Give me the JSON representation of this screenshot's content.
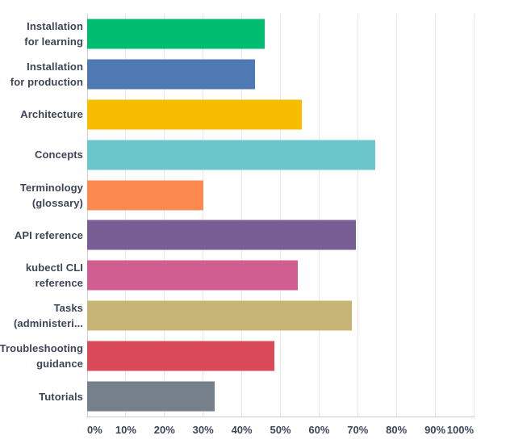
{
  "chart_data": {
    "type": "bar",
    "orientation": "horizontal",
    "title": "",
    "xlabel": "",
    "ylabel": "",
    "categories": [
      "Installation for learning",
      "Installation for production",
      "Architecture",
      "Concepts",
      "Terminology (glossary)",
      "API reference",
      "kubectl CLI reference",
      "Tasks (administeri...",
      "Troubleshooting guidance",
      "Tutorials"
    ],
    "category_display_lines": [
      [
        "Installation",
        "for learning"
      ],
      [
        "Installation",
        "for production"
      ],
      [
        "Architecture"
      ],
      [
        "Concepts"
      ],
      [
        "Terminology",
        "(glossary)"
      ],
      [
        "API reference"
      ],
      [
        "kubectl CLI",
        "reference"
      ],
      [
        "Tasks",
        "(administeri..."
      ],
      [
        "Troubleshooting",
        "guidance"
      ],
      [
        "Tutorials"
      ]
    ],
    "values": [
      46,
      43.5,
      55.5,
      74.5,
      30,
      69.5,
      54.5,
      68.5,
      48.5,
      33
    ],
    "unit": "%",
    "bar_colors": [
      "#00bc70",
      "#4e79b3",
      "#f8bd00",
      "#6bc6cb",
      "#fc8a50",
      "#795e95",
      "#d05e90",
      "#c6b575",
      "#d94b58",
      "#75808a"
    ],
    "xlim": [
      0,
      100
    ],
    "x_tick_values": [
      0,
      10,
      20,
      30,
      40,
      50,
      60,
      70,
      80,
      90,
      100
    ],
    "x_tick_labels": [
      "0%",
      "10%",
      "20%",
      "30%",
      "40%",
      "50%",
      "60%",
      "70%",
      "80%",
      "90%",
      "100%"
    ],
    "grid": "vertical-gridlines-on",
    "legend": "none",
    "colors": {
      "background": "#ffffff",
      "axis_text": "#3d4557",
      "gridline": "#e9e9ec",
      "axis_line": "#c9ccd2"
    }
  }
}
